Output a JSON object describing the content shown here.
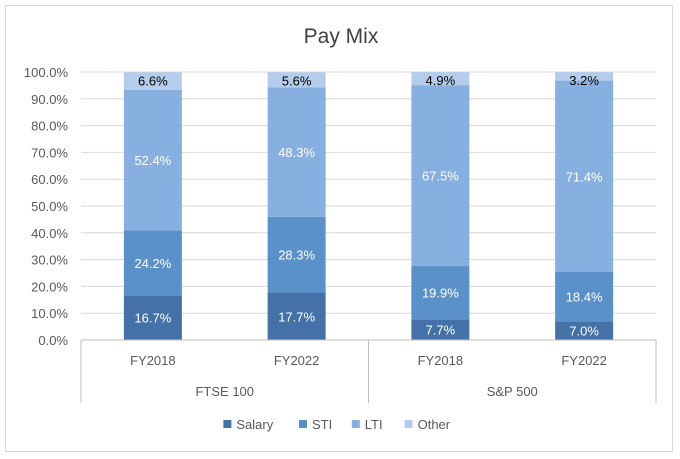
{
  "chart_data": {
    "type": "bar",
    "stacked": true,
    "title": "Pay Mix",
    "xlabel": "",
    "ylabel": "",
    "ylim": [
      0,
      100
    ],
    "y_ticks": [
      "0.0%",
      "10.0%",
      "20.0%",
      "30.0%",
      "40.0%",
      "50.0%",
      "60.0%",
      "70.0%",
      "80.0%",
      "90.0%",
      "100.0%"
    ],
    "grid": true,
    "legend_position": "bottom",
    "groups": [
      "FTSE 100",
      "S&P 500"
    ],
    "categories": [
      {
        "label": "FY2018",
        "group": "FTSE 100"
      },
      {
        "label": "FY2022",
        "group": "FTSE 100"
      },
      {
        "label": "FY2018",
        "group": "S&P 500"
      },
      {
        "label": "FY2022",
        "group": "S&P 500"
      }
    ],
    "series": [
      {
        "name": "Salary",
        "color": "#4472a8",
        "values": [
          16.7,
          17.7,
          7.7,
          7.0
        ],
        "labels": [
          "16.7%",
          "17.7%",
          "7.7%",
          "7.0%"
        ]
      },
      {
        "name": "STI",
        "color": "#5b91c9",
        "values": [
          24.2,
          28.3,
          19.9,
          18.4
        ],
        "labels": [
          "24.2%",
          "28.3%",
          "19.9%",
          "18.4%"
        ]
      },
      {
        "name": "LTI",
        "color": "#87afdf",
        "values": [
          52.4,
          48.3,
          67.5,
          71.4
        ],
        "labels": [
          "52.4%",
          "48.3%",
          "67.5%",
          "71.4%"
        ]
      },
      {
        "name": "Other",
        "color": "#b4cdec",
        "values": [
          6.6,
          5.6,
          4.9,
          3.2
        ],
        "labels": [
          "6.6%",
          "5.6%",
          "4.9%",
          "3.2%"
        ]
      }
    ]
  }
}
